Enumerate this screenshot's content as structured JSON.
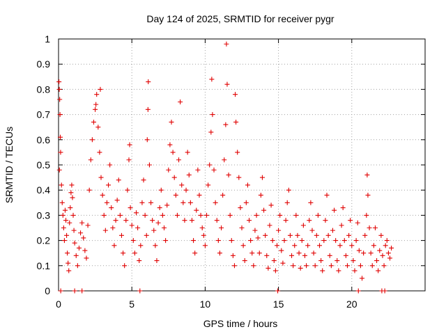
{
  "chart_data": {
    "type": "scatter",
    "title": "Day 124 of 2025, SRMTID for receiver pygr",
    "xlabel": "GPS time / hours",
    "ylabel": "SRMTID / TECUs",
    "xlim": [
      0,
      25
    ],
    "ylim": [
      0,
      1
    ],
    "xticks": [
      0,
      5,
      10,
      15,
      20
    ],
    "xtick_labels": [
      "0",
      "5",
      "10",
      "15",
      "20"
    ],
    "yticks": [
      0,
      0.1,
      0.2,
      0.3,
      0.4,
      0.5,
      0.6,
      0.7,
      0.8,
      0.9,
      1
    ],
    "ytick_labels": [
      "0",
      "0.1",
      "0.2",
      "0.3",
      "0.4",
      "0.5",
      "0.6",
      "0.7",
      "0.8",
      "0.9",
      "1"
    ],
    "grid": true,
    "marker": "+",
    "color": "#e00000",
    "series": [
      {
        "name": "SRMTID",
        "points": [
          [
            0.03,
            0.83
          ],
          [
            0.05,
            0.8
          ],
          [
            0.08,
            0.76
          ],
          [
            0.1,
            0.7
          ],
          [
            0.12,
            0.61
          ],
          [
            0.14,
            0.55
          ],
          [
            0.06,
            0.48
          ],
          [
            0.2,
            0.42
          ],
          [
            0.25,
            0.35
          ],
          [
            0.3,
            0.3
          ],
          [
            0.35,
            0.25
          ],
          [
            0.4,
            0.2
          ],
          [
            0.45,
            0.32
          ],
          [
            0.5,
            0.28
          ],
          [
            0.55,
            0.22
          ],
          [
            0.6,
            0.15
          ],
          [
            0.65,
            0.11
          ],
          [
            0.7,
            0.08
          ],
          [
            0.75,
            0.27
          ],
          [
            0.8,
            0.33
          ],
          [
            0.85,
            0.39
          ],
          [
            0.9,
            0.42
          ],
          [
            0.95,
            0.37
          ],
          [
            1.0,
            0.3
          ],
          [
            1.05,
            0.24
          ],
          [
            1.1,
            0.19
          ],
          [
            1.2,
            0.14
          ],
          [
            1.3,
            0.1
          ],
          [
            1.4,
            0.17
          ],
          [
            1.5,
            0.23
          ],
          [
            1.6,
            0.27
          ],
          [
            1.7,
            0.21
          ],
          [
            1.8,
            0.16
          ],
          [
            1.9,
            0.13
          ],
          [
            2.0,
            0.26
          ],
          [
            2.1,
            0.4
          ],
          [
            2.2,
            0.52
          ],
          [
            2.3,
            0.6
          ],
          [
            2.4,
            0.67
          ],
          [
            2.5,
            0.72
          ],
          [
            2.55,
            0.74
          ],
          [
            2.6,
            0.78
          ],
          [
            2.7,
            0.65
          ],
          [
            2.8,
            0.55
          ],
          [
            2.85,
            0.8
          ],
          [
            2.9,
            0.45
          ],
          [
            3.0,
            0.38
          ],
          [
            3.1,
            0.3
          ],
          [
            3.2,
            0.24
          ],
          [
            3.3,
            0.35
          ],
          [
            3.4,
            0.42
          ],
          [
            3.5,
            0.5
          ],
          [
            3.6,
            0.33
          ],
          [
            3.7,
            0.25
          ],
          [
            3.8,
            0.18
          ],
          [
            3.9,
            0.28
          ],
          [
            4.0,
            0.36
          ],
          [
            4.1,
            0.44
          ],
          [
            4.2,
            0.3
          ],
          [
            4.3,
            0.22
          ],
          [
            4.4,
            0.15
          ],
          [
            4.5,
            0.1
          ],
          [
            4.6,
            0.28
          ],
          [
            4.7,
            0.4
          ],
          [
            4.8,
            0.52
          ],
          [
            4.85,
            0.58
          ],
          [
            4.9,
            0.33
          ],
          [
            5.0,
            0.26
          ],
          [
            5.1,
            0.2
          ],
          [
            5.2,
            0.15
          ],
          [
            5.3,
            0.31
          ],
          [
            5.4,
            0.25
          ],
          [
            5.5,
            0.12
          ],
          [
            5.6,
            0.18
          ],
          [
            5.7,
            0.35
          ],
          [
            5.8,
            0.44
          ],
          [
            5.9,
            0.3
          ],
          [
            6.0,
            0.22
          ],
          [
            6.05,
            0.6
          ],
          [
            6.1,
            0.72
          ],
          [
            6.12,
            0.83
          ],
          [
            6.2,
            0.5
          ],
          [
            6.3,
            0.35
          ],
          [
            6.4,
            0.28
          ],
          [
            6.5,
            0.24
          ],
          [
            6.6,
            0.18
          ],
          [
            6.7,
            0.12
          ],
          [
            6.8,
            0.27
          ],
          [
            6.9,
            0.33
          ],
          [
            7.0,
            0.4
          ],
          [
            7.1,
            0.3
          ],
          [
            7.2,
            0.25
          ],
          [
            7.3,
            0.2
          ],
          [
            7.4,
            0.34
          ],
          [
            7.5,
            0.48
          ],
          [
            7.6,
            0.58
          ],
          [
            7.7,
            0.67
          ],
          [
            7.8,
            0.55
          ],
          [
            7.9,
            0.45
          ],
          [
            8.0,
            0.38
          ],
          [
            8.1,
            0.3
          ],
          [
            8.2,
            0.52
          ],
          [
            8.3,
            0.75
          ],
          [
            8.4,
            0.42
          ],
          [
            8.5,
            0.35
          ],
          [
            8.6,
            0.28
          ],
          [
            8.7,
            0.4
          ],
          [
            8.8,
            0.55
          ],
          [
            8.9,
            0.46
          ],
          [
            9.0,
            0.35
          ],
          [
            9.1,
            0.28
          ],
          [
            9.2,
            0.2
          ],
          [
            9.3,
            0.15
          ],
          [
            9.4,
            0.32
          ],
          [
            9.5,
            0.48
          ],
          [
            9.6,
            0.38
          ],
          [
            9.7,
            0.3
          ],
          [
            9.8,
            0.25
          ],
          [
            9.9,
            0.22
          ],
          [
            10.0,
            0.18
          ],
          [
            10.1,
            0.3
          ],
          [
            10.2,
            0.42
          ],
          [
            10.3,
            0.5
          ],
          [
            10.4,
            0.63
          ],
          [
            10.45,
            0.84
          ],
          [
            10.5,
            0.7
          ],
          [
            10.6,
            0.48
          ],
          [
            10.7,
            0.35
          ],
          [
            10.8,
            0.28
          ],
          [
            10.9,
            0.2
          ],
          [
            11.0,
            0.15
          ],
          [
            11.1,
            0.25
          ],
          [
            11.2,
            0.38
          ],
          [
            11.3,
            0.52
          ],
          [
            11.4,
            0.66
          ],
          [
            11.45,
            0.98
          ],
          [
            11.5,
            0.82
          ],
          [
            11.6,
            0.46
          ],
          [
            11.7,
            0.3
          ],
          [
            11.8,
            0.2
          ],
          [
            11.9,
            0.14
          ],
          [
            12.0,
            0.1
          ],
          [
            12.05,
            0.78
          ],
          [
            12.1,
            0.67
          ],
          [
            12.2,
            0.55
          ],
          [
            12.3,
            0.45
          ],
          [
            12.4,
            0.33
          ],
          [
            12.5,
            0.25
          ],
          [
            12.6,
            0.18
          ],
          [
            12.7,
            0.12
          ],
          [
            12.8,
            0.35
          ],
          [
            12.9,
            0.42
          ],
          [
            13.0,
            0.28
          ],
          [
            13.1,
            0.2
          ],
          [
            13.2,
            0.15
          ],
          [
            13.3,
            0.1
          ],
          [
            13.4,
            0.24
          ],
          [
            13.5,
            0.3
          ],
          [
            13.6,
            0.21
          ],
          [
            13.7,
            0.15
          ],
          [
            13.8,
            0.38
          ],
          [
            13.9,
            0.45
          ],
          [
            14.0,
            0.32
          ],
          [
            14.1,
            0.22
          ],
          [
            14.2,
            0.14
          ],
          [
            14.3,
            0.09
          ],
          [
            14.4,
            0.26
          ],
          [
            14.5,
            0.34
          ],
          [
            14.6,
            0.2
          ],
          [
            14.7,
            0.12
          ],
          [
            14.8,
            0.08
          ],
          [
            14.9,
            0.18
          ],
          [
            15.0,
            0.24
          ],
          [
            15.1,
            0.3
          ],
          [
            15.2,
            0.16
          ],
          [
            15.3,
            0.11
          ],
          [
            15.4,
            0.2
          ],
          [
            15.5,
            0.28
          ],
          [
            15.6,
            0.35
          ],
          [
            15.7,
            0.4
          ],
          [
            15.8,
            0.22
          ],
          [
            15.9,
            0.14
          ],
          [
            16.0,
            0.1
          ],
          [
            16.1,
            0.18
          ],
          [
            16.2,
            0.3
          ],
          [
            16.3,
            0.22
          ],
          [
            16.4,
            0.15
          ],
          [
            16.5,
            0.09
          ],
          [
            16.6,
            0.2
          ],
          [
            16.7,
            0.26
          ],
          [
            16.8,
            0.14
          ],
          [
            16.9,
            0.1
          ],
          [
            17.0,
            0.18
          ],
          [
            17.1,
            0.28
          ],
          [
            17.2,
            0.35
          ],
          [
            17.3,
            0.24
          ],
          [
            17.4,
            0.15
          ],
          [
            17.5,
            0.1
          ],
          [
            17.6,
            0.22
          ],
          [
            17.7,
            0.3
          ],
          [
            17.8,
            0.18
          ],
          [
            17.9,
            0.12
          ],
          [
            18.0,
            0.08
          ],
          [
            18.1,
            0.2
          ],
          [
            18.2,
            0.28
          ],
          [
            18.3,
            0.38
          ],
          [
            18.4,
            0.22
          ],
          [
            18.5,
            0.14
          ],
          [
            18.6,
            0.1
          ],
          [
            18.7,
            0.24
          ],
          [
            18.8,
            0.32
          ],
          [
            18.9,
            0.2
          ],
          [
            19.0,
            0.12
          ],
          [
            19.1,
            0.08
          ],
          [
            19.2,
            0.18
          ],
          [
            19.3,
            0.26
          ],
          [
            19.4,
            0.33
          ],
          [
            19.5,
            0.2
          ],
          [
            19.6,
            0.14
          ],
          [
            19.7,
            0.1
          ],
          [
            19.8,
            0.22
          ],
          [
            19.9,
            0.28
          ],
          [
            20.0,
            0.18
          ],
          [
            20.1,
            0.12
          ],
          [
            20.2,
            0.08
          ],
          [
            20.3,
            0.2
          ],
          [
            20.4,
            0.27
          ],
          [
            20.5,
            0.16
          ],
          [
            20.6,
            0.1
          ],
          [
            20.7,
            0.05
          ],
          [
            20.8,
            0.15
          ],
          [
            20.9,
            0.22
          ],
          [
            21.0,
            0.3
          ],
          [
            21.05,
            0.46
          ],
          [
            21.1,
            0.38
          ],
          [
            21.2,
            0.25
          ],
          [
            21.3,
            0.15
          ],
          [
            21.4,
            0.1
          ],
          [
            21.5,
            0.18
          ],
          [
            21.6,
            0.25
          ],
          [
            21.7,
            0.12
          ],
          [
            21.8,
            0.08
          ],
          [
            21.9,
            0.16
          ],
          [
            22.0,
            0.22
          ],
          [
            22.1,
            0.14
          ],
          [
            22.2,
            0.1
          ],
          [
            22.3,
            0.18
          ],
          [
            22.4,
            0.2
          ],
          [
            22.5,
            0.15
          ],
          [
            22.6,
            0.13
          ],
          [
            22.7,
            0.17
          ],
          [
            0.15,
            0.0
          ],
          [
            1.1,
            0.0
          ],
          [
            1.6,
            0.0
          ],
          [
            5.55,
            0.0
          ],
          [
            14.95,
            0.0
          ],
          [
            20.45,
            0.0
          ],
          [
            22.05,
            0.0
          ],
          [
            22.25,
            0.0
          ]
        ]
      }
    ]
  }
}
